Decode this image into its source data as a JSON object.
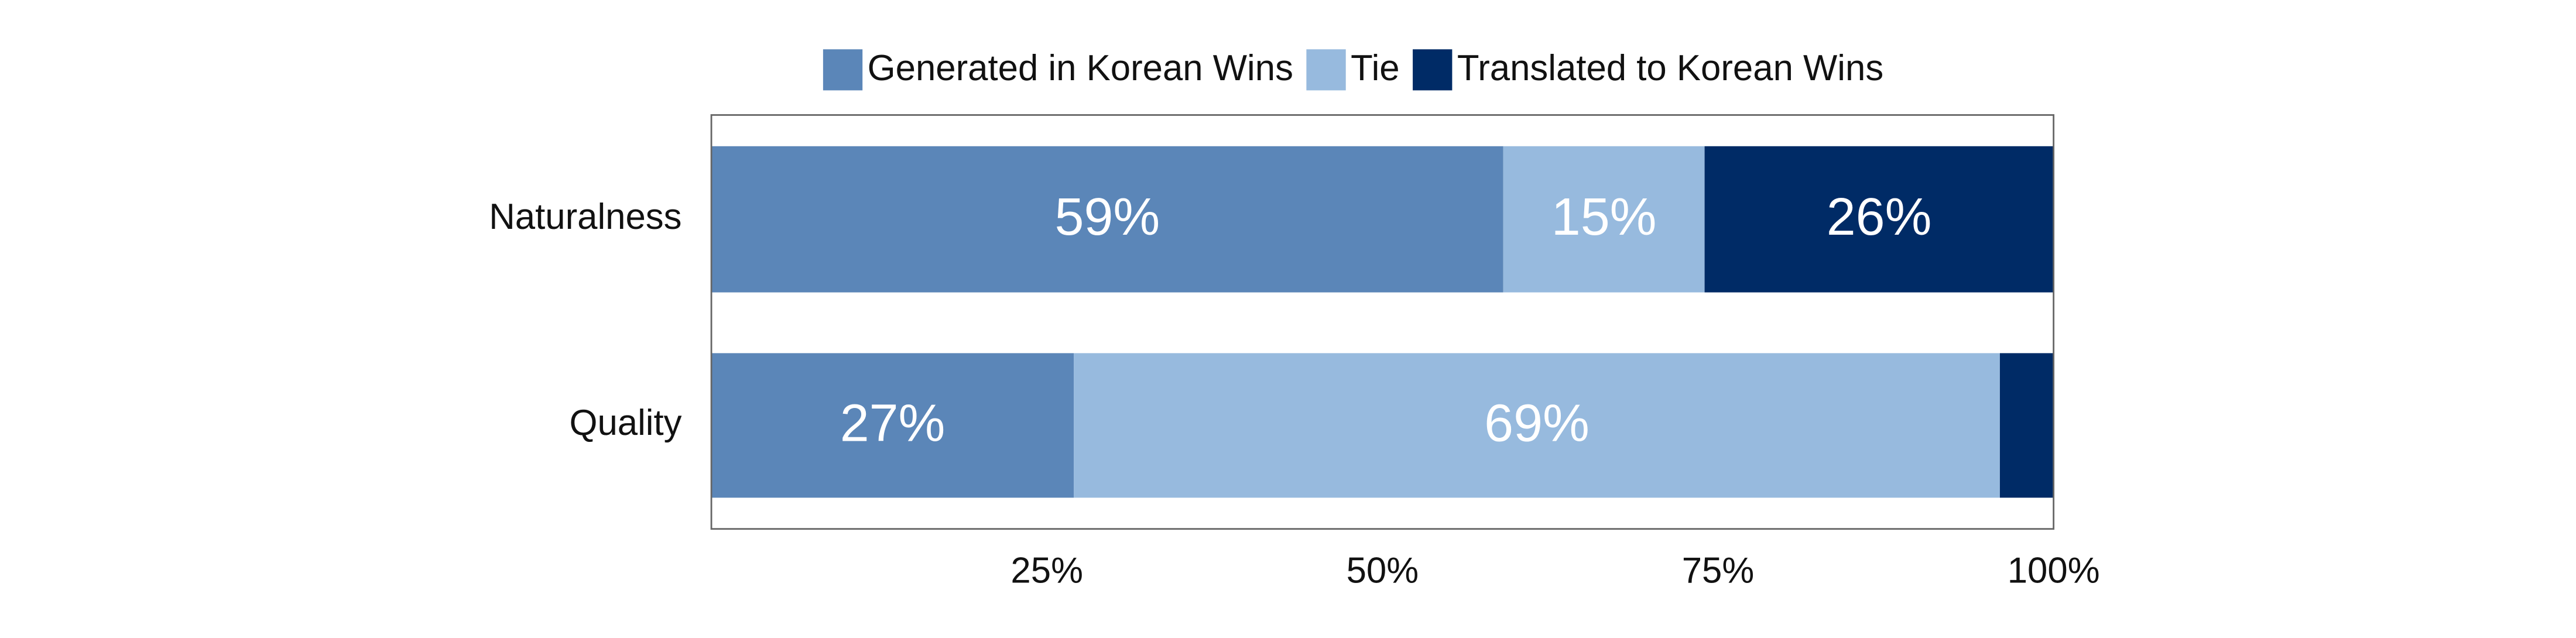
{
  "chart_data": {
    "type": "stacked-barh",
    "categories": [
      "Naturalness",
      "Quality"
    ],
    "series": [
      {
        "name": "Generated in Korean Wins",
        "color": "#5b86b8",
        "values": [
          59,
          27
        ],
        "value_labels": [
          "59%",
          "27%"
        ]
      },
      {
        "name": "Tie",
        "color": "#97bade",
        "values": [
          15,
          69
        ],
        "value_labels": [
          "15%",
          "69%"
        ]
      },
      {
        "name": "Translated to Korean Wins",
        "color": "#002b66",
        "values": [
          26,
          4
        ],
        "value_labels": [
          "26%",
          null
        ]
      }
    ],
    "xlim": [
      0,
      100
    ],
    "xticks": [
      {
        "value": 25,
        "label": "25%"
      },
      {
        "value": 50,
        "label": "50%"
      },
      {
        "value": 75,
        "label": "75%"
      },
      {
        "value": 100,
        "label": "100%"
      }
    ],
    "legend": "top"
  }
}
